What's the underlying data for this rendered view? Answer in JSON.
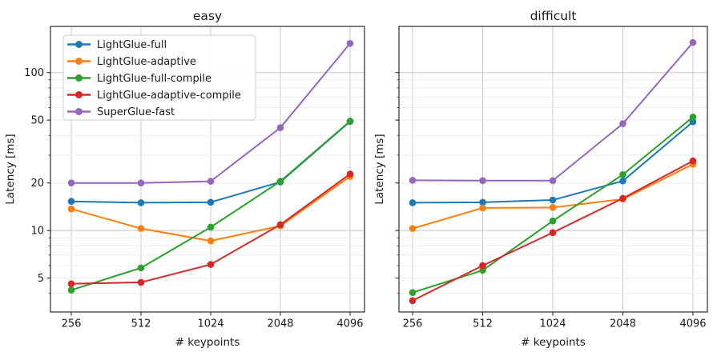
{
  "figure": {
    "background": "#ffffff",
    "text_color": "#1a1a1a",
    "spine_color": "#2b2b2b",
    "grid_major_color": "#c8c8c8",
    "grid_minor_color": "#ececec",
    "legend_border_color": "#cccccc",
    "legend_background": "#ffffff"
  },
  "chart_data": [
    {
      "type": "line",
      "title": "easy",
      "xlabel": "# keypoints",
      "ylabel": "Latency [ms]",
      "xscale": "log2",
      "yscale": "log",
      "x": [
        256,
        512,
        1024,
        2048,
        4096
      ],
      "x_tick_labels": [
        "256",
        "512",
        "1024",
        "2048",
        "4096"
      ],
      "ylim": [
        3.05,
        196
      ],
      "y_ticks_labeled": [
        5,
        10,
        20,
        50,
        100
      ],
      "y_grid_major": [
        10,
        100
      ],
      "y_ticks_minor": [
        4,
        5,
        6,
        7,
        8,
        9,
        20,
        30,
        40,
        50,
        60,
        70,
        80,
        90
      ],
      "show_y_tick_labels": true,
      "legend": {
        "show": true,
        "location": "upper left"
      },
      "series": [
        {
          "name": "LightGlue-full",
          "color": "#1f77b4",
          "values": [
            15.3,
            15.0,
            15.1,
            20.3,
            49.0
          ]
        },
        {
          "name": "LightGlue-adaptive",
          "color": "#ff7f0e",
          "values": [
            13.7,
            10.3,
            8.6,
            10.7,
            22.0
          ]
        },
        {
          "name": "LightGlue-full-compile",
          "color": "#2ca02c",
          "values": [
            4.2,
            5.8,
            10.5,
            20.5,
            49.3
          ]
        },
        {
          "name": "LightGlue-adaptive-compile",
          "color": "#d62728",
          "values": [
            4.6,
            4.7,
            6.1,
            10.9,
            22.8
          ]
        },
        {
          "name": "SuperGlue-fast",
          "color": "#9467bd",
          "values": [
            20.0,
            20.0,
            20.5,
            44.8,
            153.0
          ]
        }
      ]
    },
    {
      "type": "line",
      "title": "difficult",
      "xlabel": "# keypoints",
      "ylabel": "Latency [ms]",
      "xscale": "log2",
      "yscale": "log",
      "x": [
        256,
        512,
        1024,
        2048,
        4096
      ],
      "x_tick_labels": [
        "256",
        "512",
        "1024",
        "2048",
        "4096"
      ],
      "ylim": [
        3.05,
        196
      ],
      "y_ticks_labeled": [
        5,
        10,
        20,
        50,
        100
      ],
      "y_grid_major": [
        10,
        100
      ],
      "y_ticks_minor": [
        4,
        5,
        6,
        7,
        8,
        9,
        20,
        30,
        40,
        50,
        60,
        70,
        80,
        90
      ],
      "show_y_tick_labels": false,
      "legend": {
        "show": false,
        "location": ""
      },
      "series": [
        {
          "name": "LightGlue-full",
          "color": "#1f77b4",
          "values": [
            15.0,
            15.1,
            15.6,
            20.6,
            48.8
          ]
        },
        {
          "name": "LightGlue-adaptive",
          "color": "#ff7f0e",
          "values": [
            10.3,
            13.9,
            14.0,
            15.8,
            26.3
          ]
        },
        {
          "name": "LightGlue-full-compile",
          "color": "#2ca02c",
          "values": [
            4.05,
            5.6,
            11.5,
            22.6,
            52.3
          ]
        },
        {
          "name": "LightGlue-adaptive-compile",
          "color": "#d62728",
          "values": [
            3.6,
            6.0,
            9.7,
            16.0,
            27.6
          ]
        },
        {
          "name": "SuperGlue-fast",
          "color": "#9467bd",
          "values": [
            20.8,
            20.7,
            20.7,
            47.5,
            155.0
          ]
        }
      ]
    }
  ]
}
